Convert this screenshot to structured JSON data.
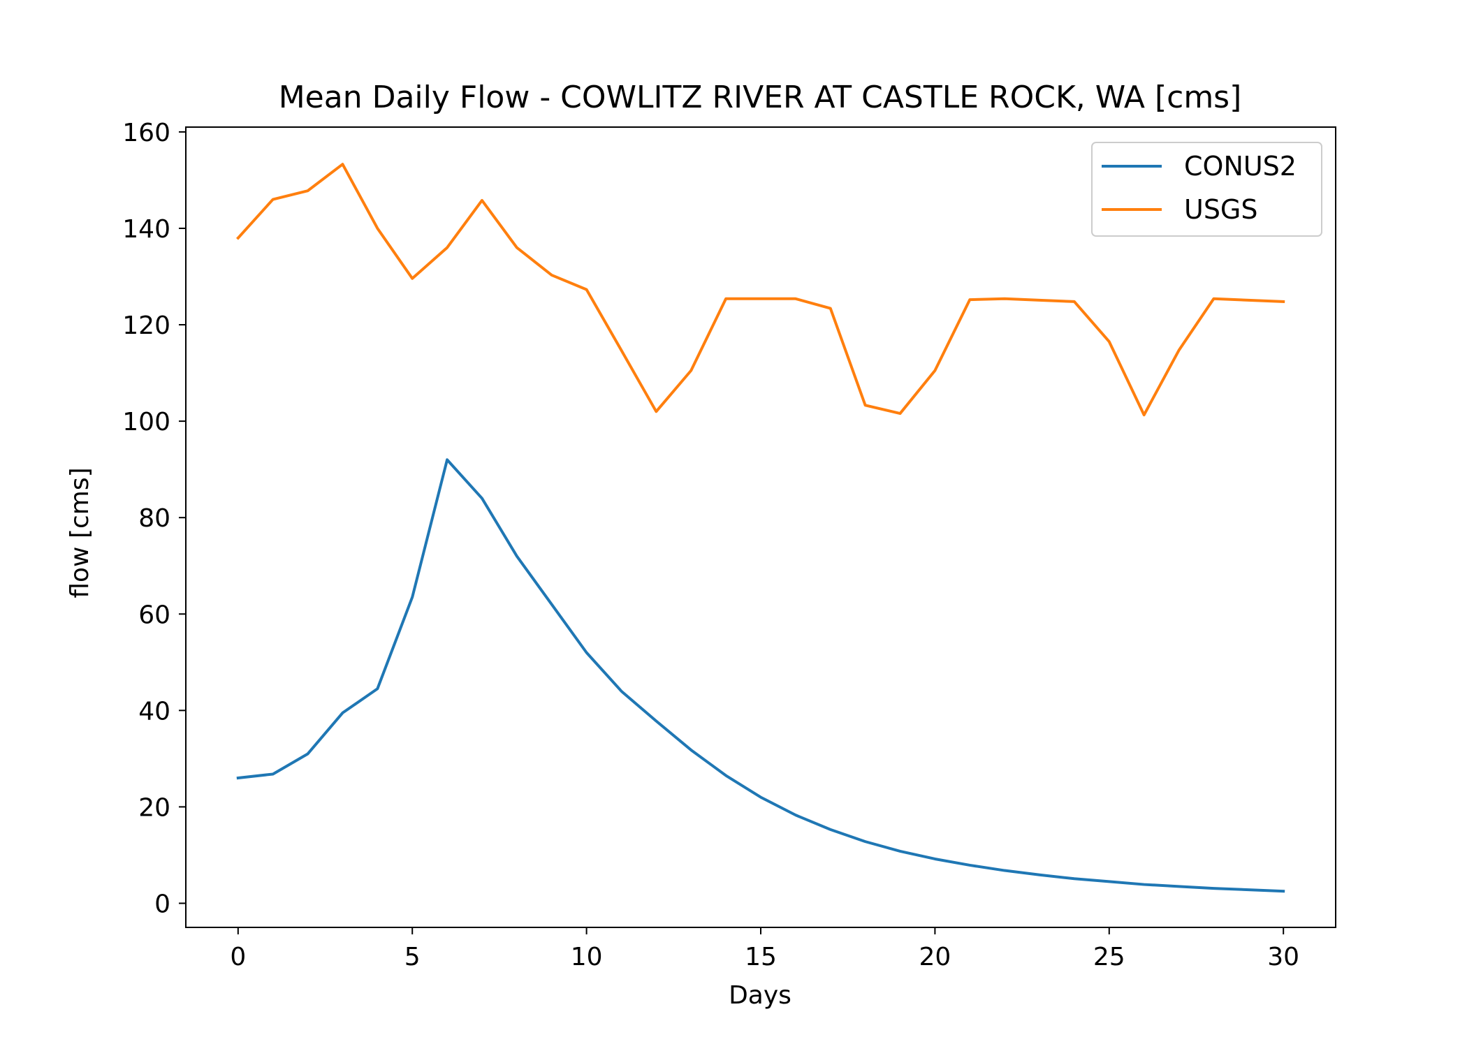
{
  "chart_data": {
    "type": "line",
    "title": "Mean Daily Flow - COWLITZ RIVER AT CASTLE ROCK, WA [cms]",
    "xlabel": "Days",
    "ylabel": "flow [cms]",
    "xlim": [
      -1.5,
      31.5
    ],
    "ylim": [
      -5,
      161
    ],
    "xticks": [
      0,
      5,
      10,
      15,
      20,
      25,
      30
    ],
    "yticks": [
      0,
      20,
      40,
      60,
      80,
      100,
      120,
      140,
      160
    ],
    "x": [
      0,
      1,
      2,
      3,
      4,
      5,
      6,
      7,
      8,
      9,
      10,
      11,
      12,
      13,
      14,
      15,
      16,
      17,
      18,
      19,
      20,
      21,
      22,
      23,
      24,
      25,
      26,
      27,
      28,
      29,
      30
    ],
    "series": [
      {
        "name": "CONUS2",
        "color": "#1f77b4",
        "values": [
          26,
          26.8,
          31,
          39.5,
          44.5,
          63.5,
          92,
          84,
          72,
          62,
          52,
          44,
          37.8,
          31.8,
          26.5,
          22,
          18.3,
          15.3,
          12.8,
          10.8,
          9.2,
          7.9,
          6.8,
          5.9,
          5.1,
          4.5,
          3.9,
          3.5,
          3.1,
          2.8,
          2.5
        ]
      },
      {
        "name": "USGS",
        "color": "#ff7f0e",
        "values": [
          138,
          146,
          147.8,
          153.3,
          140,
          129.6,
          136,
          145.8,
          136,
          130.3,
          127.3,
          114.7,
          102,
          110.5,
          125.4,
          125.4,
          125.4,
          123.4,
          103.3,
          101.6,
          110.5,
          125.2,
          125.4,
          125.1,
          124.8,
          116.5,
          101.3,
          114.7,
          125.4,
          125.1,
          124.8
        ]
      }
    ],
    "legend_position": "top-right",
    "grid": false
  }
}
